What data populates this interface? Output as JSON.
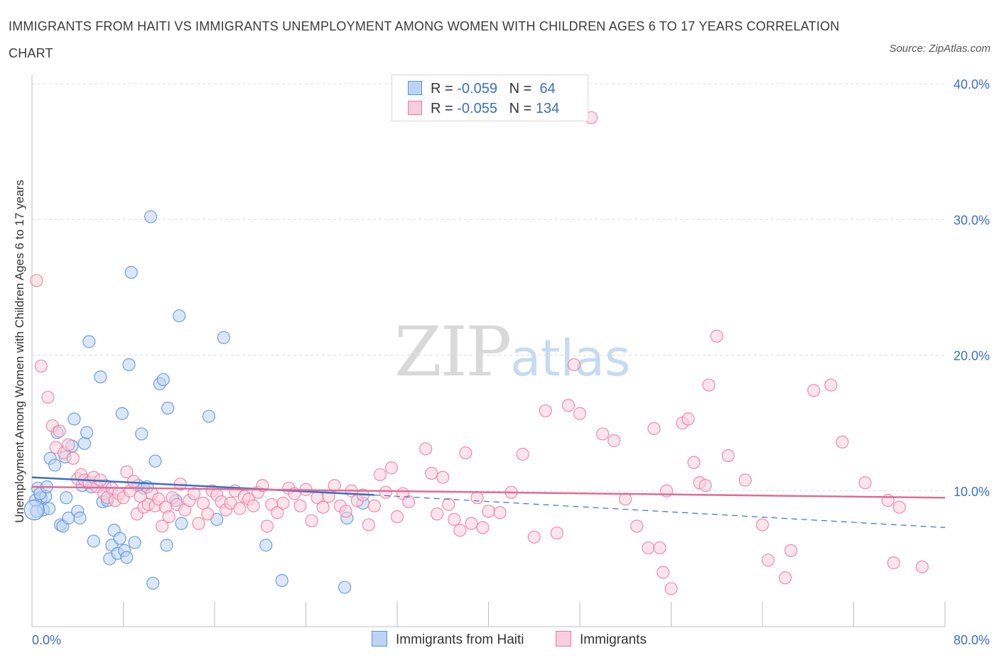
{
  "header": {
    "title": "IMMIGRANTS FROM HAITI VS IMMIGRANTS UNEMPLOYMENT AMONG WOMEN WITH CHILDREN AGES 6 TO 17 YEARS CORRELATION CHART",
    "source": "Source: ZipAtlas.com"
  },
  "watermark": {
    "zip": "ZIP",
    "atlas": "atlas"
  },
  "legend": {
    "rows": [
      {
        "r_label": "R =",
        "r_value": "-0.059",
        "n_label": "N =",
        "n_value": "64"
      },
      {
        "r_label": "R =",
        "r_value": "-0.055",
        "n_label": "N =",
        "n_value": "134"
      }
    ]
  },
  "chart_data": {
    "type": "scatter",
    "title": "IMMIGRANTS FROM HAITI VS IMMIGRANTS UNEMPLOYMENT AMONG WOMEN WITH CHILDREN AGES 6 TO 17 YEARS CORRELATION CHART",
    "xlabel": "",
    "ylabel": "Unemployment Among Women with Children Ages 6 to 17 years",
    "xlim": [
      0,
      80
    ],
    "ylim": [
      0,
      40
    ],
    "x_tick_labels": [
      "0.0%",
      "80.0%"
    ],
    "y_ticks": [
      {
        "value": 10,
        "label": "10.0%"
      },
      {
        "value": 20,
        "label": "20.0%"
      },
      {
        "value": 30,
        "label": "30.0%"
      },
      {
        "value": 40,
        "label": "40.0%"
      }
    ],
    "colors": {
      "haiti": "#5b8fd6",
      "immigrants": "#e87aa0",
      "haiti_line": "#3a6fc4",
      "immigrants_line": "#e06b94"
    },
    "series": [
      {
        "name": "Immigrants from Haiti",
        "color": "#5b8fd6",
        "points": [
          [
            0.3,
            9.3
          ],
          [
            0.5,
            10.2
          ],
          [
            0.8,
            9.5
          ],
          [
            1.0,
            8.6
          ],
          [
            1.2,
            9.6
          ],
          [
            1.5,
            8.7
          ],
          [
            1.6,
            12.4
          ],
          [
            2.0,
            11.9
          ],
          [
            2.2,
            14.3
          ],
          [
            2.5,
            7.5
          ],
          [
            2.7,
            7.4
          ],
          [
            2.9,
            12.5
          ],
          [
            3.0,
            9.5
          ],
          [
            3.2,
            8.0
          ],
          [
            3.5,
            13.3
          ],
          [
            3.7,
            15.3
          ],
          [
            4.0,
            8.5
          ],
          [
            4.2,
            8.0
          ],
          [
            4.4,
            10.4
          ],
          [
            4.6,
            13.5
          ],
          [
            4.8,
            14.3
          ],
          [
            5.0,
            21.0
          ],
          [
            5.2,
            10.3
          ],
          [
            5.4,
            6.3
          ],
          [
            6.0,
            18.4
          ],
          [
            6.2,
            9.2
          ],
          [
            6.4,
            10.4
          ],
          [
            6.6,
            9.3
          ],
          [
            6.8,
            5.0
          ],
          [
            7.0,
            6.0
          ],
          [
            7.2,
            7.1
          ],
          [
            7.5,
            5.4
          ],
          [
            7.7,
            6.5
          ],
          [
            7.9,
            15.7
          ],
          [
            8.1,
            5.6
          ],
          [
            8.3,
            5.1
          ],
          [
            8.5,
            19.3
          ],
          [
            8.7,
            26.1
          ],
          [
            9.0,
            6.2
          ],
          [
            9.3,
            10.4
          ],
          [
            9.6,
            14.2
          ],
          [
            9.8,
            10.2
          ],
          [
            10.1,
            10.3
          ],
          [
            10.4,
            30.2
          ],
          [
            10.6,
            3.2
          ],
          [
            10.8,
            12.2
          ],
          [
            11.2,
            17.9
          ],
          [
            11.5,
            18.2
          ],
          [
            11.8,
            6.0
          ],
          [
            11.9,
            16.1
          ],
          [
            12.6,
            9.3
          ],
          [
            12.9,
            22.9
          ],
          [
            13.1,
            7.6
          ],
          [
            15.5,
            15.5
          ],
          [
            16.2,
            7.9
          ],
          [
            16.8,
            21.3
          ],
          [
            20.5,
            6.0
          ],
          [
            21.9,
            3.4
          ],
          [
            27.4,
            2.9
          ],
          [
            27.6,
            8.0
          ],
          [
            29.0,
            9.1
          ],
          [
            0.4,
            8.5
          ],
          [
            0.7,
            9.8
          ],
          [
            1.3,
            10.3
          ]
        ]
      },
      {
        "name": "Immigrants",
        "color": "#e87aa0",
        "points": [
          [
            0.4,
            25.5
          ],
          [
            0.8,
            19.2
          ],
          [
            1.4,
            16.9
          ],
          [
            1.8,
            14.8
          ],
          [
            2.1,
            13.2
          ],
          [
            2.4,
            14.4
          ],
          [
            2.8,
            12.8
          ],
          [
            3.2,
            13.4
          ],
          [
            3.6,
            12.4
          ],
          [
            4.0,
            10.9
          ],
          [
            4.3,
            11.2
          ],
          [
            4.6,
            10.8
          ],
          [
            5.0,
            10.6
          ],
          [
            5.4,
            11.0
          ],
          [
            5.7,
            10.3
          ],
          [
            6.0,
            10.8
          ],
          [
            6.3,
            9.8
          ],
          [
            6.6,
            9.5
          ],
          [
            7.0,
            10.2
          ],
          [
            7.3,
            9.3
          ],
          [
            7.6,
            9.8
          ],
          [
            8.0,
            9.5
          ],
          [
            8.3,
            11.4
          ],
          [
            8.6,
            10.0
          ],
          [
            8.9,
            10.7
          ],
          [
            9.2,
            8.3
          ],
          [
            9.5,
            9.6
          ],
          [
            9.8,
            8.8
          ],
          [
            10.2,
            9.0
          ],
          [
            10.5,
            9.8
          ],
          [
            10.8,
            8.9
          ],
          [
            11.1,
            9.4
          ],
          [
            11.4,
            7.4
          ],
          [
            11.7,
            8.8
          ],
          [
            12.0,
            8.1
          ],
          [
            12.3,
            9.5
          ],
          [
            12.7,
            9.0
          ],
          [
            13.0,
            10.5
          ],
          [
            13.4,
            8.6
          ],
          [
            13.8,
            9.3
          ],
          [
            14.2,
            9.8
          ],
          [
            14.6,
            7.6
          ],
          [
            15.0,
            9.1
          ],
          [
            15.4,
            8.3
          ],
          [
            15.8,
            10.0
          ],
          [
            16.2,
            9.7
          ],
          [
            16.6,
            9.2
          ],
          [
            17.0,
            8.6
          ],
          [
            17.4,
            9.1
          ],
          [
            17.8,
            10.0
          ],
          [
            18.2,
            8.7
          ],
          [
            18.6,
            9.6
          ],
          [
            19.0,
            9.4
          ],
          [
            19.4,
            8.9
          ],
          [
            19.8,
            9.9
          ],
          [
            20.2,
            10.4
          ],
          [
            20.6,
            7.4
          ],
          [
            21.0,
            9.0
          ],
          [
            21.5,
            8.4
          ],
          [
            22.0,
            9.1
          ],
          [
            22.5,
            10.2
          ],
          [
            23.0,
            9.8
          ],
          [
            23.5,
            8.9
          ],
          [
            24.0,
            10.1
          ],
          [
            24.5,
            7.8
          ],
          [
            25.0,
            9.5
          ],
          [
            25.5,
            8.8
          ],
          [
            26.0,
            9.6
          ],
          [
            26.5,
            10.4
          ],
          [
            27.0,
            8.9
          ],
          [
            27.5,
            8.5
          ],
          [
            28.0,
            10.0
          ],
          [
            28.5,
            9.3
          ],
          [
            29.0,
            9.7
          ],
          [
            29.5,
            7.5
          ],
          [
            30.0,
            8.9
          ],
          [
            30.5,
            11.2
          ],
          [
            31.0,
            9.9
          ],
          [
            31.5,
            11.7
          ],
          [
            32.0,
            8.1
          ],
          [
            32.5,
            9.8
          ],
          [
            33.0,
            9.2
          ],
          [
            34.5,
            13.1
          ],
          [
            35.0,
            11.3
          ],
          [
            35.5,
            8.3
          ],
          [
            36.0,
            11.0
          ],
          [
            36.5,
            9.0
          ],
          [
            37.0,
            7.9
          ],
          [
            37.5,
            7.1
          ],
          [
            38.0,
            12.8
          ],
          [
            38.5,
            7.6
          ],
          [
            39.0,
            9.5
          ],
          [
            39.5,
            7.3
          ],
          [
            40.0,
            8.5
          ],
          [
            41.0,
            8.4
          ],
          [
            42.0,
            9.9
          ],
          [
            43.0,
            12.7
          ],
          [
            44.0,
            6.6
          ],
          [
            45.0,
            15.9
          ],
          [
            46.0,
            6.9
          ],
          [
            47.0,
            16.3
          ],
          [
            48.0,
            15.7
          ],
          [
            49.0,
            37.5
          ],
          [
            50.0,
            14.2
          ],
          [
            51.0,
            13.7
          ],
          [
            52.0,
            9.4
          ],
          [
            53.0,
            7.4
          ],
          [
            54.0,
            5.8
          ],
          [
            54.5,
            14.6
          ],
          [
            55.0,
            5.8
          ],
          [
            55.6,
            10.0
          ],
          [
            56.0,
            2.8
          ],
          [
            57.0,
            15.0
          ],
          [
            57.5,
            15.3
          ],
          [
            58.0,
            12.1
          ],
          [
            58.5,
            10.6
          ],
          [
            59.0,
            10.4
          ],
          [
            59.3,
            17.8
          ],
          [
            60.0,
            21.4
          ],
          [
            61.0,
            12.6
          ],
          [
            62.5,
            10.8
          ],
          [
            64.0,
            7.5
          ],
          [
            64.5,
            4.9
          ],
          [
            66.0,
            3.6
          ],
          [
            68.5,
            17.4
          ],
          [
            70.0,
            17.8
          ],
          [
            71.0,
            13.6
          ],
          [
            73.0,
            10.6
          ],
          [
            75.0,
            9.3
          ],
          [
            75.5,
            4.7
          ],
          [
            76.0,
            8.8
          ],
          [
            78.0,
            4.4
          ],
          [
            47.5,
            19.3
          ],
          [
            66.5,
            5.6
          ],
          [
            55.3,
            4.0
          ]
        ]
      }
    ],
    "trend_lines": [
      {
        "series": "Immigrants from Haiti",
        "solid": [
          [
            0,
            11.0
          ],
          [
            30,
            9.7
          ]
        ],
        "dashed": [
          [
            30,
            9.7
          ],
          [
            80,
            7.3
          ]
        ]
      },
      {
        "series": "Immigrants",
        "solid": [
          [
            0,
            10.3
          ],
          [
            80,
            9.5
          ]
        ]
      }
    ],
    "grid": true,
    "legend_position": "top-center"
  },
  "bottom_legend": {
    "items": [
      {
        "label": "Immigrants from Haiti"
      },
      {
        "label": "Immigrants"
      }
    ]
  }
}
